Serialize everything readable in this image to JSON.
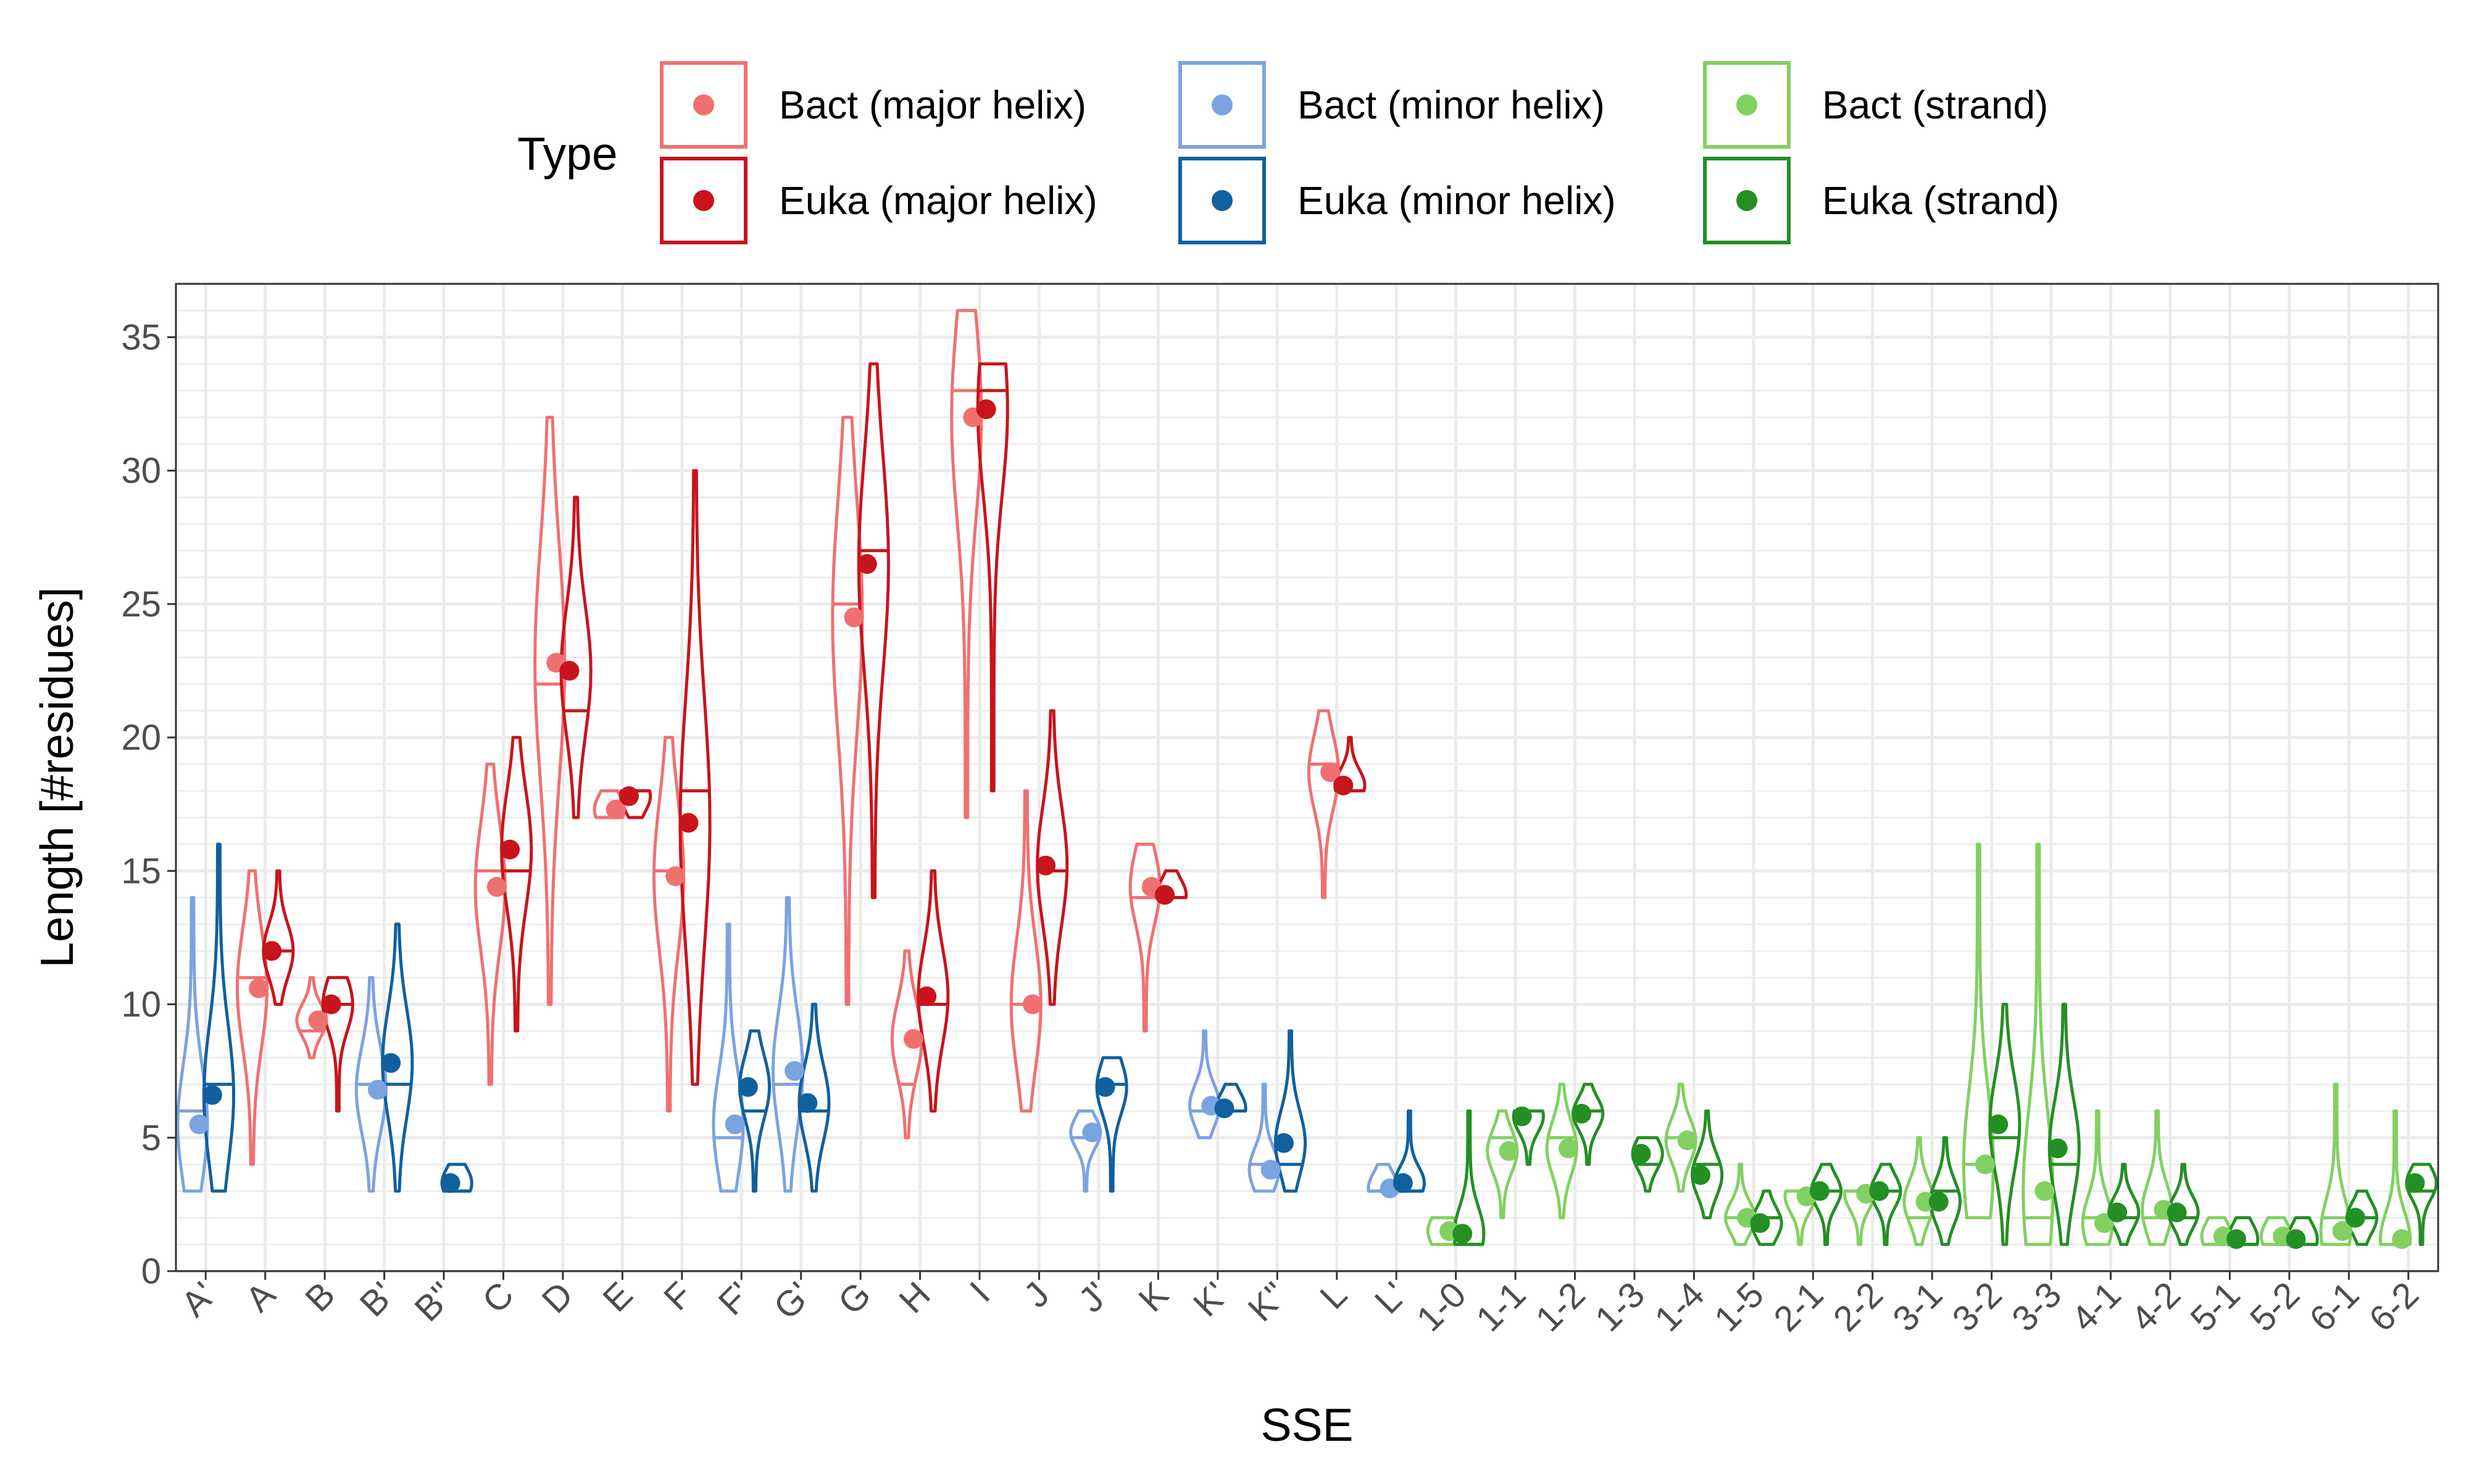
{
  "chart_data": {
    "type": "violin",
    "xlabel": "SSE",
    "ylabel": "Length [#residues]",
    "ylim": [
      0,
      37
    ],
    "y_ticks": [
      0,
      5,
      10,
      15,
      20,
      25,
      30,
      35
    ],
    "grid": true,
    "legend_position": "top",
    "legend": {
      "title": "Type",
      "entries": [
        {
          "label": "Bact (major helix)",
          "color": "#F07070"
        },
        {
          "label": "Euka (major helix)",
          "color": "#C8141C"
        },
        {
          "label": "Bact (minor helix)",
          "color": "#7BA3E0"
        },
        {
          "label": "Euka (minor helix)",
          "color": "#11609E"
        },
        {
          "label": "Bact (strand)",
          "color": "#82D062"
        },
        {
          "label": "Euka (strand)",
          "color": "#248F24"
        }
      ]
    },
    "categories": [
      "A'",
      "A",
      "B",
      "B'",
      "B''",
      "C",
      "D",
      "E",
      "F",
      "F'",
      "G'",
      "G",
      "H",
      "I",
      "J",
      "J'",
      "K",
      "K'",
      "K''",
      "L",
      "L'",
      "1-0",
      "1-1",
      "1-2",
      "1-3",
      "1-4",
      "1-5",
      "2-1",
      "2-2",
      "3-1",
      "3-2",
      "3-3",
      "4-1",
      "4-2",
      "5-1",
      "5-2",
      "6-1",
      "6-2"
    ],
    "category_group": [
      "minor",
      "major",
      "major",
      "minor",
      "minor",
      "major",
      "major",
      "major",
      "major",
      "minor",
      "minor",
      "major",
      "major",
      "major",
      "major",
      "minor",
      "major",
      "minor",
      "minor",
      "major",
      "minor",
      "strand",
      "strand",
      "strand",
      "strand",
      "strand",
      "strand",
      "strand",
      "strand",
      "strand",
      "strand",
      "strand",
      "strand",
      "strand",
      "strand",
      "strand",
      "strand",
      "strand"
    ],
    "series": [
      {
        "name": "Bact",
        "mean": [
          5.5,
          10.6,
          9.4,
          6.8,
          null,
          14.4,
          22.8,
          17.3,
          14.8,
          5.5,
          7.5,
          24.5,
          8.7,
          32.0,
          10.0,
          5.2,
          14.4,
          6.2,
          3.8,
          18.7,
          3.1,
          1.5,
          4.5,
          4.6,
          null,
          4.9,
          2.0,
          2.8,
          2.9,
          2.6,
          4.0,
          3.0,
          1.8,
          2.3,
          1.3,
          1.3,
          1.5,
          1.2
        ],
        "min": [
          3,
          4,
          8,
          3,
          null,
          7,
          10,
          17,
          6,
          3,
          3,
          10,
          5,
          17,
          6,
          3,
          9,
          5,
          3,
          14,
          3,
          1,
          2,
          2,
          null,
          3,
          1,
          1,
          1,
          1,
          2,
          1,
          1,
          1,
          1,
          1,
          1,
          1
        ],
        "max": [
          14,
          15,
          11,
          11,
          null,
          19,
          32,
          18,
          20,
          13,
          14,
          32,
          12,
          36,
          18,
          6,
          16,
          9,
          7,
          21,
          4,
          2,
          6,
          7,
          null,
          7,
          4,
          3,
          3,
          5,
          16,
          16,
          6,
          6,
          2,
          2,
          7,
          6
        ],
        "median": [
          6,
          11,
          9,
          7,
          null,
          15,
          22,
          17,
          15,
          5,
          7,
          25,
          7,
          33,
          10,
          5,
          14,
          6,
          4,
          19,
          3,
          2,
          5,
          5,
          null,
          5,
          2,
          3,
          3,
          2,
          4,
          2,
          2,
          2,
          1,
          1,
          2,
          1
        ]
      },
      {
        "name": "Euka",
        "mean": [
          6.6,
          12.0,
          10.0,
          7.8,
          3.3,
          15.8,
          22.5,
          17.8,
          16.8,
          6.9,
          6.3,
          26.5,
          10.3,
          32.3,
          15.2,
          6.9,
          14.1,
          6.1,
          4.8,
          18.2,
          3.3,
          1.4,
          5.8,
          5.9,
          4.4,
          3.6,
          1.8,
          3.0,
          3.0,
          2.6,
          5.5,
          4.6,
          2.2,
          2.2,
          1.2,
          1.2,
          2.0,
          3.3
        ],
        "min": [
          3,
          10,
          6,
          3,
          3,
          9,
          17,
          17,
          7,
          3,
          3,
          14,
          6,
          18,
          10,
          3,
          14,
          6,
          3,
          18,
          3,
          1,
          4,
          4,
          3,
          2,
          1,
          1,
          1,
          1,
          1,
          1,
          1,
          1,
          1,
          1,
          1,
          1
        ],
        "max": [
          16,
          15,
          11,
          13,
          4,
          20,
          29,
          18,
          30,
          9,
          10,
          34,
          15,
          34,
          21,
          8,
          15,
          7,
          9,
          20,
          6,
          6,
          6,
          7,
          5,
          6,
          3,
          4,
          4,
          5,
          10,
          10,
          4,
          4,
          2,
          2,
          3,
          4
        ],
        "median": [
          7,
          12,
          10,
          7,
          3,
          15,
          21,
          18,
          18,
          6,
          6,
          27,
          10,
          33,
          15,
          7,
          14,
          6,
          4,
          18,
          3,
          1,
          6,
          6,
          4,
          4,
          2,
          3,
          3,
          3,
          5,
          4,
          2,
          2,
          1,
          1,
          2,
          3
        ]
      }
    ]
  }
}
